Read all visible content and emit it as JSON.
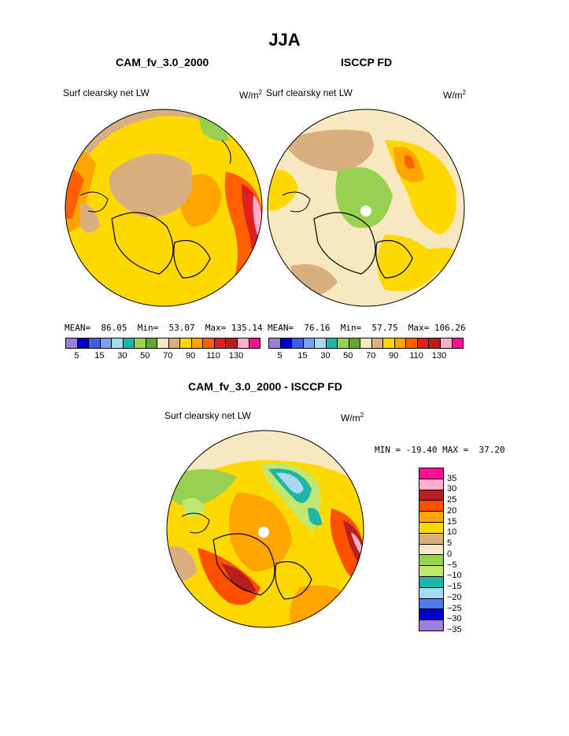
{
  "title": "JJA",
  "panels": [
    {
      "title": "CAM_fv_3.0_2000",
      "variable": "Surf clearsky net LW",
      "units_base": "W/m",
      "units_exp": "2",
      "stats": "MEAN=  86.05  Min=  53.07  Max= 135.14"
    },
    {
      "title": "ISCCP FD",
      "variable": "Surf clearsky net LW",
      "units_base": "W/m",
      "units_exp": "2",
      "stats": "MEAN=  76.16  Min=  57.75  Max= 106.26"
    }
  ],
  "colorbar_ticks": [
    "5",
    "15",
    "30",
    "50",
    "70",
    "90",
    "110",
    "130"
  ],
  "colorbar_colors": [
    "#9b7fd9",
    "#0000c8",
    "#4060e0",
    "#7aa0f0",
    "#a8d8f0",
    "#20b4a8",
    "#98d050",
    "#60a830",
    "#f8e8c0",
    "#d8b080",
    "#ffd800",
    "#ffa500",
    "#ff6000",
    "#e02020",
    "#b82020",
    "#ffb0c8",
    "#ff1090"
  ],
  "diff": {
    "title": "CAM_fv_3.0_2000 - ISCCP FD",
    "variable": "Surf clearsky net LW",
    "units_base": "W/m",
    "units_exp": "2",
    "stats": "MIN = -19.40 MAX =  37.20",
    "levels": [
      "35",
      "30",
      "25",
      "20",
      "15",
      "10",
      "5",
      "0",
      "−5",
      "−10",
      "−15",
      "−20",
      "−25",
      "−30",
      "−35"
    ],
    "colors": [
      "#ff1090",
      "#ffb0c8",
      "#b82020",
      "#ff5000",
      "#ffa500",
      "#ffd800",
      "#d8b080",
      "#f8e8c0",
      "#98d050",
      "#c0e870",
      "#20b4a8",
      "#a8d8f0",
      "#5078e8",
      "#0000c8",
      "#9b7fd9"
    ]
  }
}
